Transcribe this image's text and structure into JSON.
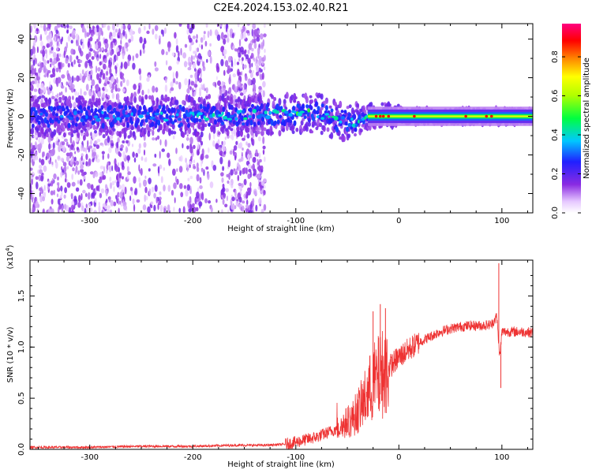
{
  "title": "C2E4.2024.153.02.40.R21",
  "chart_data": [
    {
      "type": "heatmap",
      "xlabel": "Height of straight line (km)",
      "ylabel": "Frequency (Hz)",
      "xlim": [
        -358,
        130
      ],
      "ylim": [
        -50,
        48
      ],
      "x_ticks": [
        -300,
        -200,
        -100,
        0,
        100
      ],
      "y_ticks": [
        -40,
        -20,
        0,
        20,
        40
      ],
      "x_tick_labels": [
        "-300",
        "-200",
        "-100",
        "0",
        "100"
      ],
      "y_tick_labels": [
        "-40",
        "-20",
        "0",
        "20",
        "40"
      ],
      "colorbar": {
        "label": "Normalized spectral amplitude",
        "range": [
          0,
          0.97
        ],
        "ticks": [
          0.0,
          0.2,
          0.4,
          0.6,
          0.8
        ],
        "tick_labels": [
          "0.0",
          "0.2",
          "0.4",
          "0.6",
          "0.8"
        ],
        "colormap": "rainbow (white-violet-blue-cyan-green-yellow-red-magenta)"
      },
      "band": {
        "center_points": [
          [
            -358,
            0
          ],
          [
            -200,
            0
          ],
          [
            -130,
            1
          ],
          [
            -100,
            1
          ],
          [
            -80,
            2
          ],
          [
            -60,
            -2
          ],
          [
            -40,
            -3
          ],
          [
            -30,
            0
          ],
          [
            -10,
            1
          ],
          [
            0,
            0
          ],
          [
            130,
            0
          ]
        ],
        "core_amplitude": [
          [
            -358,
            0.3
          ],
          [
            -200,
            0.4
          ],
          [
            -130,
            0.45
          ],
          [
            -100,
            0.5
          ],
          [
            -60,
            0.45
          ],
          [
            -40,
            0.4
          ],
          [
            -20,
            0.7
          ],
          [
            0,
            0.72
          ],
          [
            60,
            0.75
          ],
          [
            100,
            0.72
          ],
          [
            130,
            0.7
          ]
        ],
        "noise_region_xmax": -130
      }
    },
    {
      "type": "line",
      "xlabel": "Height of straight line (km)",
      "ylabel": "SNR (10 * v/v)",
      "multiplier": "(x10^4)",
      "xlim": [
        -358,
        130
      ],
      "ylim": [
        0,
        1.85
      ],
      "x_ticks": [
        -300,
        -200,
        -100,
        0,
        100
      ],
      "y_ticks": [
        0.0,
        0.5,
        1.0,
        1.5
      ],
      "x_tick_labels": [
        "-300",
        "-200",
        "-100",
        "0",
        "100"
      ],
      "y_tick_labels": [
        "0.0",
        "0.5",
        "1.0",
        "1.5"
      ],
      "series": [
        {
          "color": "#ee3333",
          "x": [
            -358,
            -300,
            -250,
            -200,
            -160,
            -130,
            -110,
            -100,
            -80,
            -60,
            -45,
            -35,
            -25,
            -15,
            -5,
            0,
            10,
            20,
            30,
            40,
            50,
            60,
            70,
            80,
            90,
            95,
            98,
            100,
            110,
            120,
            130
          ],
          "y": [
            0.02,
            0.02,
            0.03,
            0.03,
            0.04,
            0.04,
            0.05,
            0.07,
            0.12,
            0.2,
            0.3,
            0.45,
            0.65,
            0.75,
            0.85,
            0.9,
            0.98,
            1.05,
            1.1,
            1.15,
            1.18,
            1.2,
            1.21,
            1.21,
            1.22,
            1.3,
            0.9,
            1.15,
            1.15,
            1.15,
            1.14
          ]
        }
      ],
      "spikes": [
        {
          "x": -25,
          "y": 1.35
        },
        {
          "x": -18,
          "y": 1.42
        },
        {
          "x": -13,
          "y": 1.38
        },
        {
          "x": 97,
          "y": 1.82
        },
        {
          "x": 99,
          "y": 0.6
        }
      ]
    }
  ]
}
